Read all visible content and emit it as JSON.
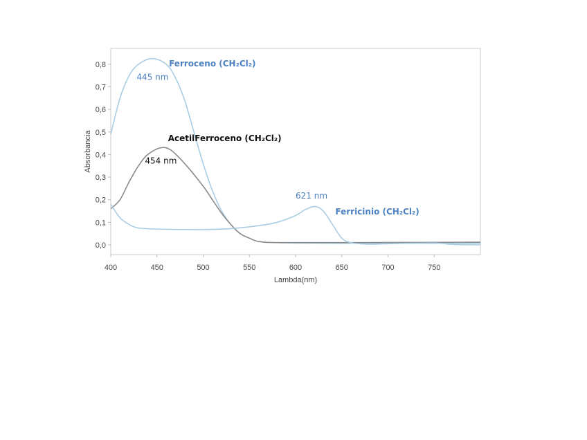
{
  "chart_data": {
    "type": "line",
    "title": "",
    "xlabel": "Lambda(nm)",
    "ylabel": "Absorbancia",
    "xlim": [
      400,
      800
    ],
    "ylim": [
      -0.043,
      0.87
    ],
    "xticks": [
      400,
      450,
      500,
      550,
      600,
      650,
      700,
      750
    ],
    "xtick_labels": [
      "400",
      "450",
      "500",
      "550",
      "600",
      "650",
      "700",
      "750"
    ],
    "yticks": [
      0.0,
      0.1,
      0.2,
      0.3,
      0.4,
      0.5,
      0.6,
      0.7,
      0.8
    ],
    "ytick_labels": [
      "0,0",
      "0,1",
      "0,2",
      "0,3",
      "0,4",
      "0,5",
      "0,6",
      "0,7",
      "0,8"
    ],
    "grid": false,
    "series": [
      {
        "name": "Ferroceno (CH₂Cl₂)",
        "color": "#a9cde3",
        "x": [
          400,
          410,
          420,
          430,
          445,
          460,
          470,
          480,
          490,
          500,
          510,
          520,
          530,
          540,
          550,
          560,
          580,
          600,
          650,
          700,
          750,
          800
        ],
        "y": [
          0.49,
          0.65,
          0.75,
          0.8,
          0.825,
          0.8,
          0.74,
          0.64,
          0.5,
          0.36,
          0.24,
          0.15,
          0.09,
          0.05,
          0.03,
          0.015,
          0.01,
          0.008,
          0.007,
          0.008,
          0.007,
          0.007
        ]
      },
      {
        "name": "AcetilFerroceno (CH₂Cl₂)",
        "color": "#8a8a8a",
        "x": [
          400,
          410,
          420,
          430,
          440,
          454,
          465,
          480,
          500,
          510,
          520,
          530,
          540,
          550,
          560,
          580,
          650,
          800
        ],
        "y": [
          0.16,
          0.2,
          0.28,
          0.35,
          0.4,
          0.43,
          0.42,
          0.36,
          0.26,
          0.2,
          0.14,
          0.09,
          0.05,
          0.03,
          0.015,
          0.01,
          0.01,
          0.012
        ]
      },
      {
        "name": "Ferricinio (CH₂Cl₂)",
        "color": "#a9cde3",
        "x": [
          400,
          410,
          420,
          430,
          450,
          500,
          530,
          560,
          580,
          600,
          610,
          621,
          630,
          640,
          650,
          660,
          680,
          700,
          750,
          770,
          800
        ],
        "y": [
          0.18,
          0.12,
          0.09,
          0.075,
          0.07,
          0.068,
          0.072,
          0.085,
          0.1,
          0.13,
          0.155,
          0.17,
          0.15,
          0.09,
          0.03,
          0.01,
          0.003,
          0.005,
          0.008,
          0.002,
          0.0
        ]
      }
    ],
    "annotations": [
      {
        "text": "Ferroceno (CH₂Cl₂)",
        "x": 463,
        "y": 0.79,
        "color": "#4f82c2",
        "bold": true
      },
      {
        "text": "445 nm",
        "x": 428,
        "y": 0.73,
        "color": "#4f82c2",
        "bold": false
      },
      {
        "text": "AcetilFerroceno (CH₂Cl₂)",
        "x": 462,
        "y": 0.46,
        "color": "#111111",
        "bold": true
      },
      {
        "text": "454 nm",
        "x": 437,
        "y": 0.36,
        "color": "#111111",
        "bold": false
      },
      {
        "text": "621 nm",
        "x": 600,
        "y": 0.205,
        "color": "#4f82c2",
        "bold": false
      },
      {
        "text": "Ferricinio (CH₂Cl₂)",
        "x": 643,
        "y": 0.135,
        "color": "#4f82c2",
        "bold": true
      }
    ]
  }
}
